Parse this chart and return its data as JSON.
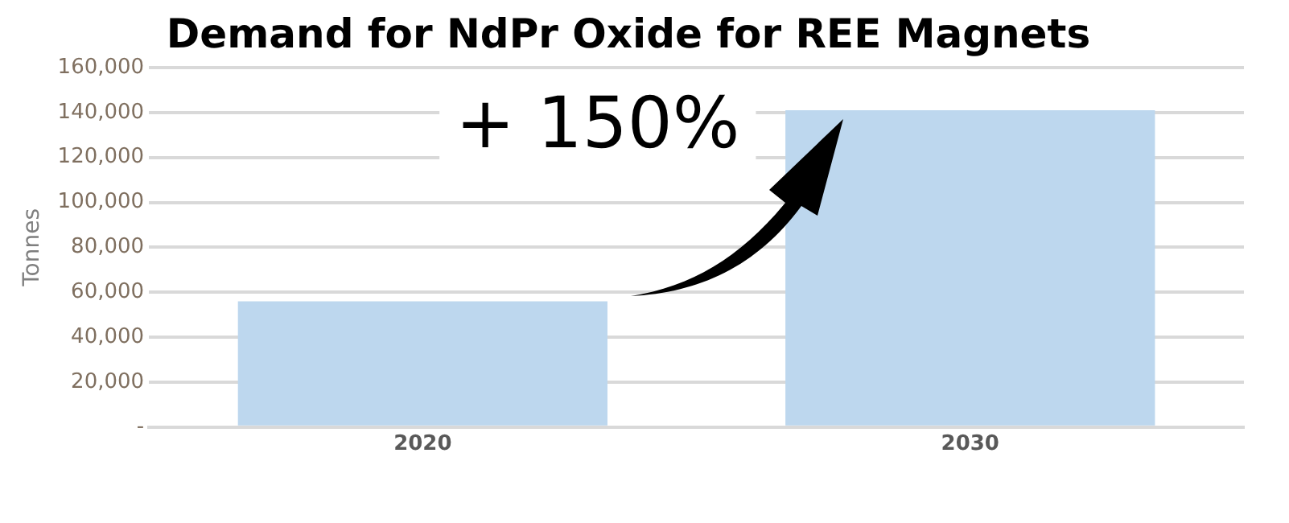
{
  "chart_data": {
    "type": "bar",
    "title": "Demand for NdPr Oxide for REE Magnets",
    "ylabel": "Tonnes",
    "categories": [
      "2020",
      "2030"
    ],
    "series": [
      {
        "color": "#bdd7ee",
        "values": [
          56000,
          141000
        ]
      }
    ],
    "ylim": [
      0,
      160000
    ],
    "yticks": [
      {
        "value": 0,
        "label": "-"
      },
      {
        "value": 20000,
        "label": "20,000"
      },
      {
        "value": 40000,
        "label": "40,000"
      },
      {
        "value": 60000,
        "label": "60,000"
      },
      {
        "value": 80000,
        "label": "80,000"
      },
      {
        "value": 100000,
        "label": "100,000"
      },
      {
        "value": 120000,
        "label": "120,000"
      },
      {
        "value": 140000,
        "label": "140,000"
      },
      {
        "value": 160000,
        "label": "160,000"
      }
    ],
    "grid": "y",
    "legend": false,
    "annotations": [
      "+ 150%"
    ]
  }
}
